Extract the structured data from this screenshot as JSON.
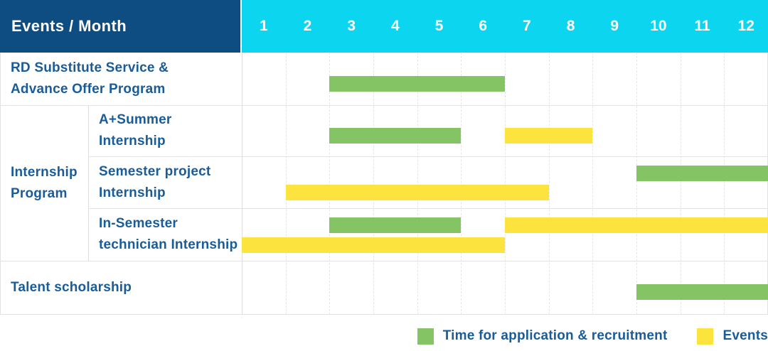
{
  "header": {
    "title": "Events / Month",
    "months": [
      "1",
      "2",
      "3",
      "4",
      "5",
      "6",
      "7",
      "8",
      "9",
      "10",
      "11",
      "12"
    ]
  },
  "colors": {
    "header_navy": "#0d4d82",
    "header_cyan": "#0cd6ef",
    "bar_green": "#85c464",
    "bar_yellow": "#fde33d",
    "text_blue": "#1a5c98",
    "grid_line": "#e4e4e4"
  },
  "legend": {
    "items": [
      {
        "color_key": "bar_green",
        "label": "Time for application & recruitment"
      },
      {
        "color_key": "bar_yellow",
        "label": "Events"
      }
    ]
  },
  "chart_data": {
    "type": "gantt",
    "x_unit": "month",
    "x_range": [
      1,
      12
    ],
    "row_group": {
      "label": "Internship Program",
      "label_lines": [
        "Internship",
        "Program"
      ],
      "from_row": 1,
      "to_row": 3
    },
    "rows": [
      {
        "label": "RD Substitute Service & Advance Offer Program",
        "label_lines": [
          "RD Substitute Service &",
          "Advance Offer Program"
        ],
        "in_group": false,
        "lanes": [
          [
            {
              "type": "application_recruitment",
              "color": "green",
              "start_month": 3,
              "end_month": 6
            }
          ]
        ]
      },
      {
        "label": "A+Summer Internship",
        "label_lines": [
          "A+Summer",
          "Internship"
        ],
        "in_group": true,
        "lanes": [
          [
            {
              "type": "application_recruitment",
              "color": "green",
              "start_month": 3,
              "end_month": 5
            },
            {
              "type": "events",
              "color": "yellow",
              "start_month": 7,
              "end_month": 8
            }
          ]
        ]
      },
      {
        "label": "Semester project Internship",
        "label_lines": [
          "Semester project",
          "Internship"
        ],
        "in_group": true,
        "lanes": [
          [
            {
              "type": "application_recruitment",
              "color": "green",
              "start_month": 10,
              "end_month": 12
            }
          ],
          [
            {
              "type": "events",
              "color": "yellow",
              "start_month": 2,
              "end_month": 7
            }
          ]
        ]
      },
      {
        "label": "In-Semester technician Internship",
        "label_lines": [
          "In-Semester",
          "technician Internship"
        ],
        "in_group": true,
        "lanes": [
          [
            {
              "type": "application_recruitment",
              "color": "green",
              "start_month": 3,
              "end_month": 5
            },
            {
              "type": "events",
              "color": "yellow",
              "start_month": 7,
              "end_month": 12
            }
          ],
          [
            {
              "type": "events",
              "color": "yellow",
              "start_month": 1,
              "end_month": 6
            }
          ]
        ]
      },
      {
        "label": "Talent scholarship",
        "label_lines": [
          "Talent scholarship"
        ],
        "in_group": false,
        "lanes": [
          [
            {
              "type": "application_recruitment",
              "color": "green",
              "start_month": 10,
              "end_month": 12
            }
          ]
        ]
      }
    ]
  }
}
